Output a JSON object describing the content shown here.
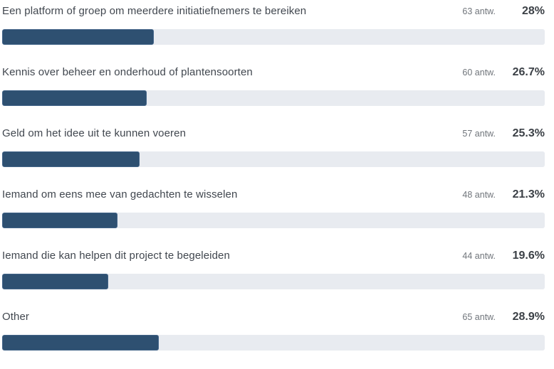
{
  "chart_data": {
    "type": "bar",
    "orientation": "horizontal",
    "title": "",
    "xlabel": "",
    "ylabel": "",
    "xlim": [
      0,
      100
    ],
    "grid": false,
    "legend": null,
    "categories": [
      "Een platform of groep om meerdere initiatiefnemers te bereiken",
      "Kennis over beheer en onderhoud of plantensoorten",
      "Geld om het idee uit te kunnen voeren",
      "Iemand om eens mee van gedachten te wisselen",
      "Iemand die kan helpen dit project te begeleiden",
      "Other"
    ],
    "values_percent": [
      28,
      26.7,
      25.3,
      21.3,
      19.6,
      28.9
    ],
    "values_responses": [
      63,
      60,
      57,
      48,
      44,
      65
    ],
    "rows": [
      {
        "label": "Een platform of groep om meerdere initiatiefnemers te bereiken",
        "count_label": "63 antw.",
        "percent_label": "28%",
        "percent": 28
      },
      {
        "label": "Kennis over beheer en onderhoud of plantensoorten",
        "count_label": "60 antw.",
        "percent_label": "26.7%",
        "percent": 26.7
      },
      {
        "label": "Geld om het idee uit te kunnen voeren",
        "count_label": "57 antw.",
        "percent_label": "25.3%",
        "percent": 25.3
      },
      {
        "label": "Iemand om eens mee van gedachten te wisselen",
        "count_label": "48 antw.",
        "percent_label": "21.3%",
        "percent": 21.3
      },
      {
        "label": "Iemand die kan helpen dit project te begeleiden",
        "count_label": "44 antw.",
        "percent_label": "19.6%",
        "percent": 19.6
      },
      {
        "label": "Other",
        "count_label": "65 antw.",
        "percent_label": "28.9%",
        "percent": 28.9
      }
    ],
    "colors": {
      "bar_fill": "#2e5071",
      "bar_border": "#426488",
      "track": "#e8ebf0",
      "label_text": "#41474f",
      "count_text": "#70757b",
      "percent_text": "#3b4046"
    }
  }
}
